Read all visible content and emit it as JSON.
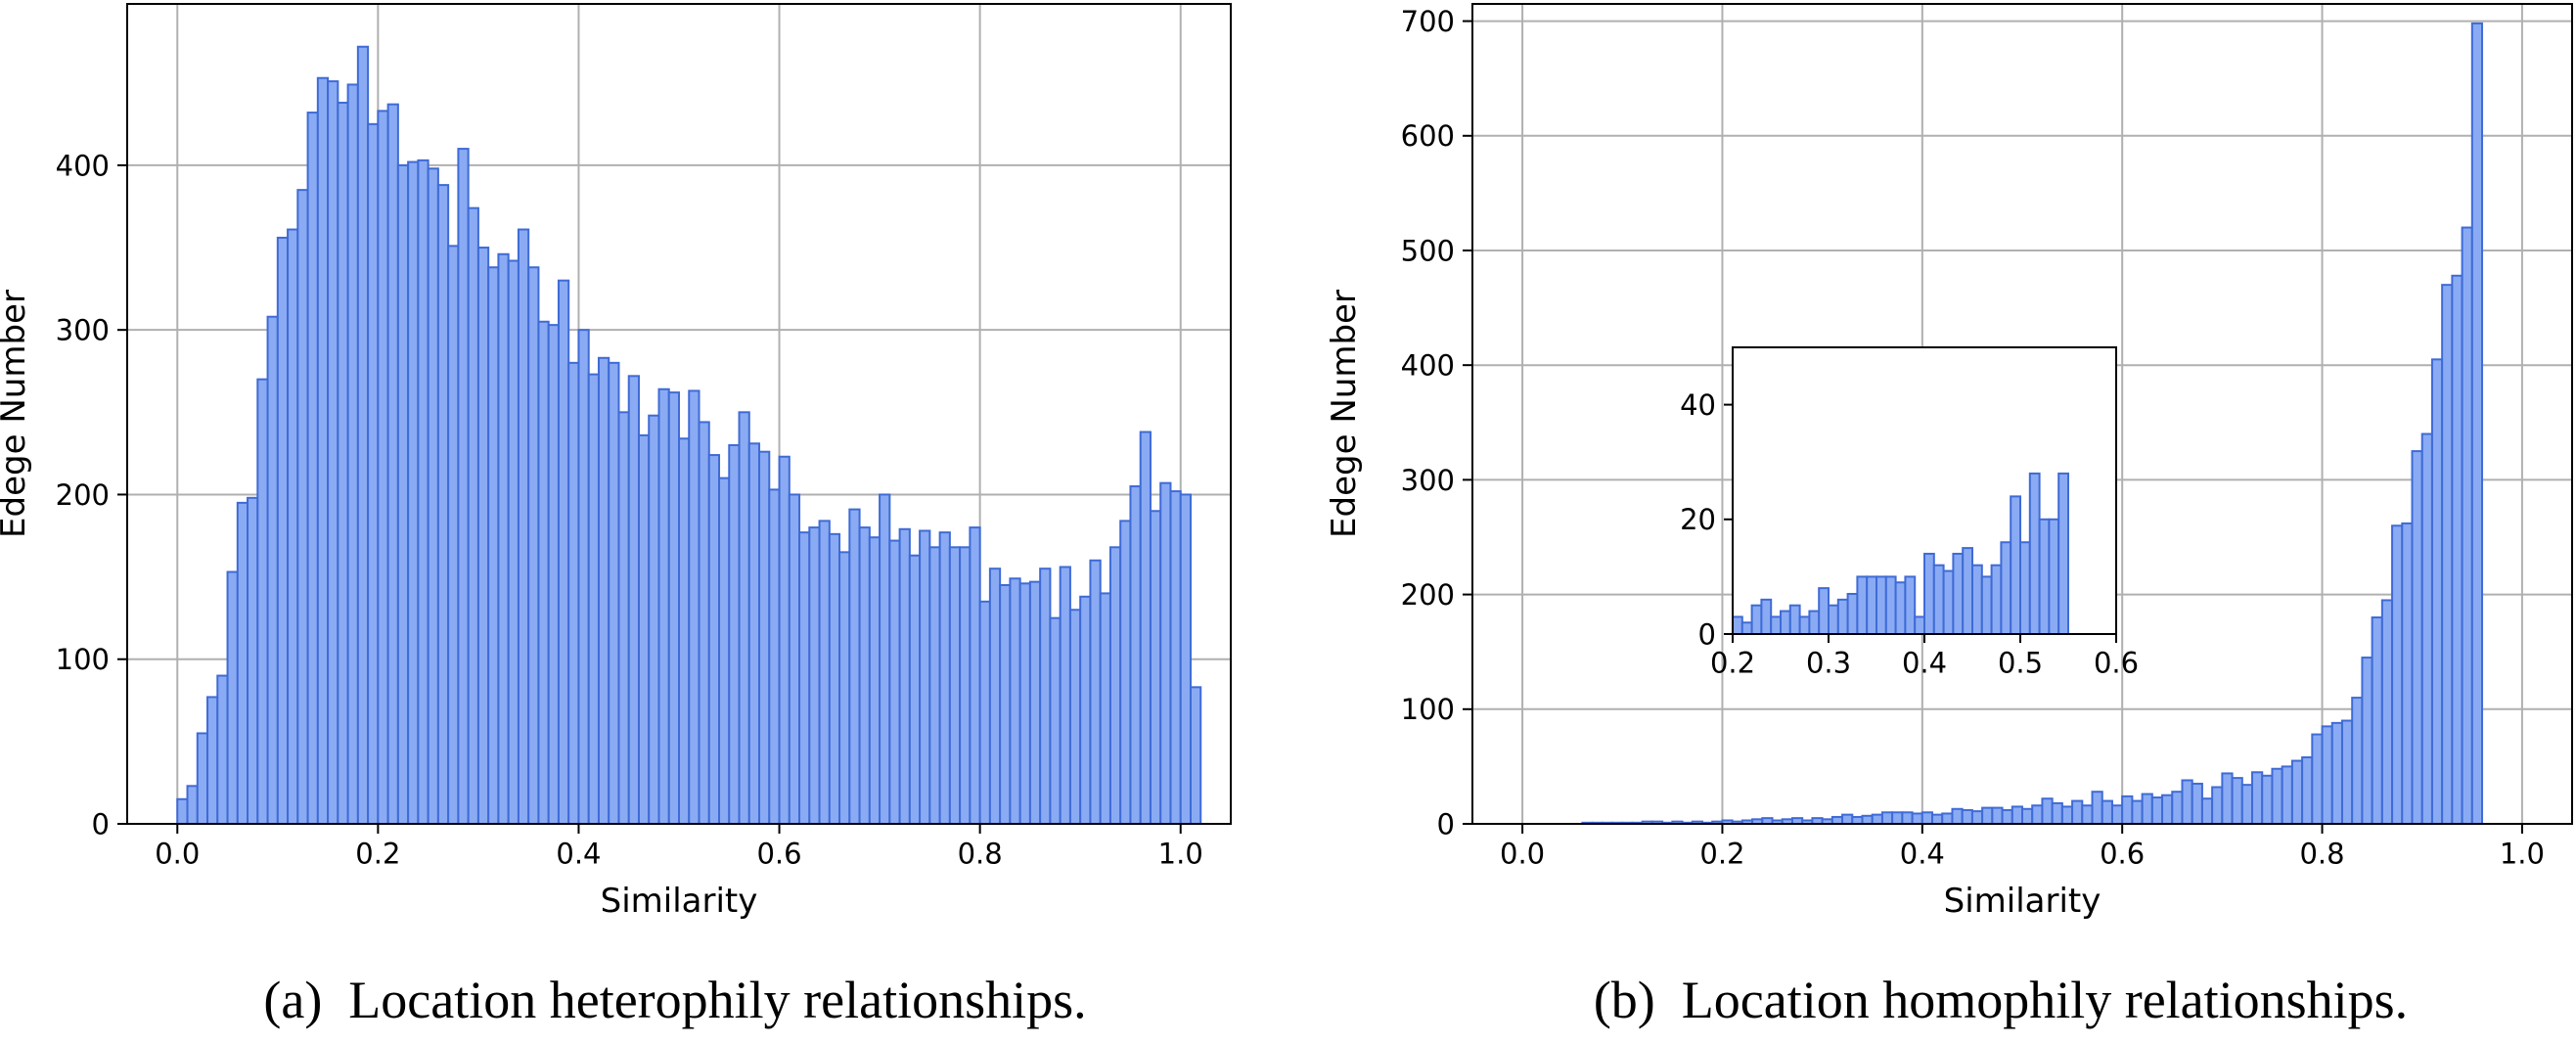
{
  "colors": {
    "bar_fill": "#8AABF3",
    "bar_edge": "#3F6BD6",
    "grid": "#b0b0b0",
    "axis": "#000000"
  },
  "chart_data": [
    {
      "type": "bar",
      "id": "a",
      "xlabel": "Similarity",
      "ylabel": "Edege Number",
      "xlim": [
        -0.05,
        1.05
      ],
      "ylim": [
        0,
        498
      ],
      "xticks": [
        0.0,
        0.2,
        0.4,
        0.6,
        0.8,
        1.0
      ],
      "xtick_labels": [
        "0.0",
        "0.2",
        "0.4",
        "0.6",
        "0.8",
        "1.0"
      ],
      "yticks": [
        0,
        100,
        200,
        300,
        400
      ],
      "ytick_labels": [
        "0",
        "100",
        "200",
        "300",
        "400"
      ],
      "grid": true,
      "bin_start": 0.0,
      "bin_width": 0.01,
      "values": [
        15,
        23,
        55,
        77,
        90,
        153,
        195,
        198,
        270,
        308,
        356,
        361,
        385,
        432,
        453,
        451,
        438,
        449,
        472,
        425,
        433,
        437,
        400,
        402,
        403,
        398,
        388,
        351,
        410,
        374,
        350,
        338,
        346,
        342,
        361,
        338,
        305,
        303,
        330,
        280,
        300,
        273,
        283,
        280,
        250,
        272,
        236,
        248,
        264,
        262,
        234,
        263,
        244,
        224,
        210,
        230,
        250,
        231,
        226,
        203,
        223,
        200,
        177,
        180,
        184,
        176,
        165,
        191,
        180,
        174,
        200,
        172,
        179,
        163,
        178,
        168,
        177,
        168,
        168,
        180,
        135,
        155,
        145,
        149,
        146,
        147,
        155,
        125,
        156,
        130,
        138,
        160,
        140,
        168,
        184,
        205,
        238,
        190,
        207,
        202,
        200,
        83
      ]
    },
    {
      "type": "bar",
      "id": "b",
      "xlabel": "Similarity",
      "ylabel": "Edege Number",
      "xlim": [
        -0.05,
        1.05
      ],
      "ylim": [
        0,
        715
      ],
      "xticks": [
        0.0,
        0.2,
        0.4,
        0.6,
        0.8,
        1.0
      ],
      "xtick_labels": [
        "0.0",
        "0.2",
        "0.4",
        "0.6",
        "0.8",
        "1.0"
      ],
      "yticks": [
        0,
        100,
        200,
        300,
        400,
        500,
        600,
        700
      ],
      "ytick_labels": [
        "0",
        "100",
        "200",
        "300",
        "400",
        "500",
        "600",
        "700"
      ],
      "grid": true,
      "bin_start": 0.0,
      "bin_width": 0.01,
      "values": [
        0,
        0,
        0,
        0,
        0,
        0,
        1,
        1,
        1,
        1,
        1,
        1,
        2,
        2,
        1,
        2,
        1,
        2,
        1,
        2,
        3,
        2,
        3,
        4,
        5,
        3,
        4,
        5,
        3,
        5,
        4,
        6,
        8,
        6,
        7,
        8,
        10,
        10,
        10,
        9,
        10,
        8,
        9,
        13,
        12,
        11,
        14,
        14,
        12,
        15,
        13,
        16,
        22,
        18,
        15,
        20,
        16,
        28,
        20,
        16,
        24,
        20,
        26,
        23,
        25,
        28,
        38,
        35,
        22,
        32,
        44,
        40,
        34,
        45,
        42,
        48,
        50,
        55,
        58,
        78,
        85,
        88,
        90,
        110,
        145,
        180,
        195,
        260,
        262,
        325,
        340,
        405,
        470,
        478,
        520,
        698
      ],
      "inset": {
        "xlim": [
          0.2,
          0.6
        ],
        "ylim": [
          0,
          50
        ],
        "xticks": [
          0.2,
          0.3,
          0.4,
          0.5,
          0.6
        ],
        "xtick_labels": [
          "0.2",
          "0.3",
          "0.4",
          "0.5",
          "0.6"
        ],
        "yticks": [
          0,
          20,
          40
        ],
        "ytick_labels": [
          "0",
          "20",
          "40"
        ],
        "bin_start": 0.2,
        "bin_width": 0.01,
        "values": [
          3,
          2,
          5,
          6,
          3,
          4,
          5,
          3,
          4,
          8,
          5,
          6,
          7,
          10,
          10,
          10,
          10,
          9,
          10,
          3,
          14,
          12,
          11,
          14,
          15,
          12,
          10,
          12,
          16,
          24,
          16,
          28,
          20,
          20,
          28
        ]
      }
    }
  ],
  "captions": {
    "a": "(a) Location heterophily relationships.",
    "b": "(b) Location homophily relationships."
  }
}
